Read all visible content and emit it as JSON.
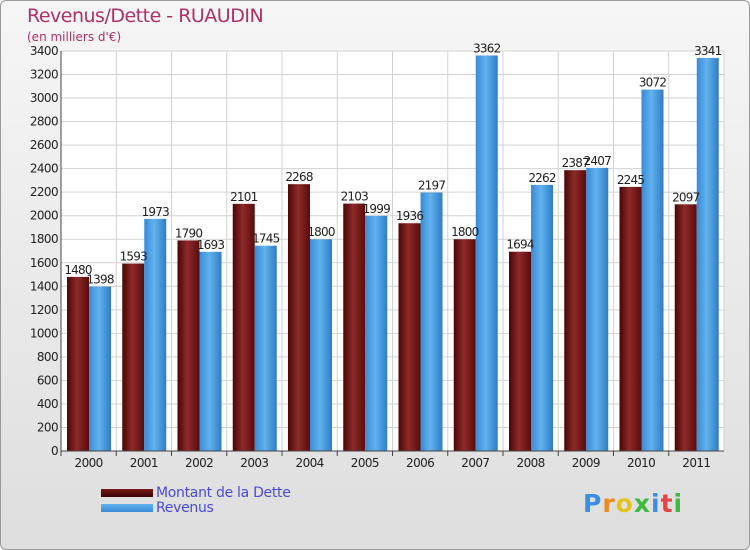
{
  "title": "Revenus/Dette - RUAUDIN",
  "subtitle": "(en milliers d'€)",
  "logo": {
    "letters": [
      "P",
      "r",
      "o",
      "x",
      "i",
      "t",
      "i"
    ],
    "colors": [
      "#3a8ee6",
      "#f08a1e",
      "#e8c21c",
      "#3dbb3d",
      "#3a8ee6",
      "#e04646",
      "#3dbb3d"
    ]
  },
  "chart_data": {
    "type": "bar",
    "categories": [
      "2000",
      "2001",
      "2002",
      "2003",
      "2004",
      "2005",
      "2006",
      "2007",
      "2008",
      "2009",
      "2010",
      "2011"
    ],
    "series": [
      {
        "name": "Montant de la Dette",
        "color": "#8b1a1a",
        "values": [
          1480,
          1593,
          1790,
          2101,
          2268,
          2103,
          1936,
          1800,
          1694,
          2387,
          2245,
          2097
        ]
      },
      {
        "name": "Revenus",
        "color": "#4fa3e6",
        "values": [
          1398,
          1973,
          1693,
          1745,
          1800,
          1999,
          2197,
          3362,
          2262,
          2407,
          3072,
          3341
        ]
      }
    ],
    "ylim": [
      0,
      3400
    ],
    "yticks": [
      0,
      200,
      400,
      600,
      800,
      1000,
      1200,
      1400,
      1600,
      1800,
      2000,
      2200,
      2400,
      2600,
      2800,
      3000,
      3200,
      3400
    ],
    "grid": true,
    "legend_position": "bottom-left"
  }
}
